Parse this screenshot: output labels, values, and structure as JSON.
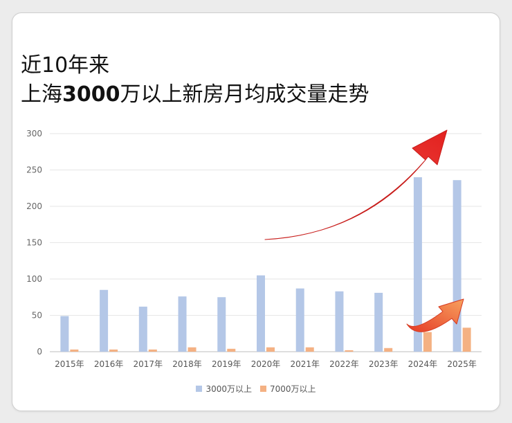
{
  "title": {
    "line1": "近10年来",
    "line2_pre": "上海",
    "line2_num": "3000",
    "line2_post": "万以上新房月均成交量走势"
  },
  "chart_data": {
    "type": "bar",
    "categories": [
      "2015年",
      "2016年",
      "2017年",
      "2018年",
      "2019年",
      "2020年",
      "2021年",
      "2022年",
      "2023年",
      "2024年",
      "2025年"
    ],
    "series": [
      {
        "name": "3000万以上",
        "color": "#b4c7e7",
        "values": [
          49,
          85,
          62,
          76,
          75,
          105,
          87,
          83,
          81,
          240,
          236
        ]
      },
      {
        "name": "7000万以上",
        "color": "#f4b183",
        "values": [
          3,
          3,
          3,
          6,
          4,
          6,
          6,
          2,
          5,
          27,
          33
        ]
      }
    ],
    "yticks": [
      0,
      50,
      100,
      150,
      200,
      250,
      300
    ],
    "ylim": [
      0,
      300
    ],
    "grid": true,
    "legend": "bottom",
    "annotations": [
      {
        "type": "arrow",
        "color": "#e8312e",
        "description": "large upward curved arrow"
      },
      {
        "type": "arrow",
        "color": "#ef5a2b",
        "description": "small upward curved arrow near 2024-2025 bars"
      }
    ]
  }
}
